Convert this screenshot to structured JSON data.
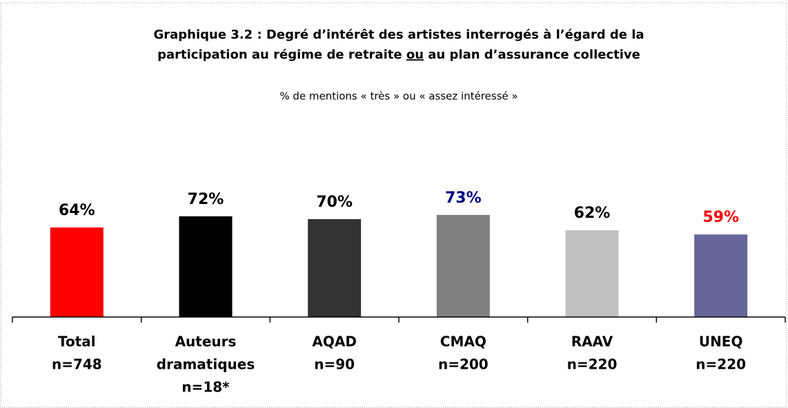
{
  "chart_data": {
    "type": "bar",
    "title": [
      "Graphique 3.2 : Degré d’intérêt des artistes interrogés à l’égard de la",
      [
        "participation au régime de retraite ",
        "ou",
        " au plan d’assurance collective"
      ]
    ],
    "subtitle": "% de mentions « très » ou « assez intéressé »",
    "categories": [
      [
        "Total",
        "n=748"
      ],
      [
        "Auteurs",
        "dramatiques",
        "n=18*"
      ],
      [
        "AQAD",
        "n=90"
      ],
      [
        "CMAQ",
        "n=200"
      ],
      [
        "RAAV",
        "n=220"
      ],
      [
        "UNEQ",
        "n=220"
      ]
    ],
    "values": [
      64,
      72,
      70,
      73,
      62,
      59
    ],
    "value_labels": [
      "64%",
      "72%",
      "70%",
      "73%",
      "62%",
      "59%"
    ],
    "colors": [
      "#ff0000",
      "#000000",
      "#333333",
      "#808080",
      "#c0c0c0",
      "#666699"
    ],
    "value_label_colors": [
      "#000000",
      "#000000",
      "#000000",
      "#000080",
      "#000000",
      "#ff0000"
    ],
    "ylim": [
      0,
      100
    ]
  }
}
